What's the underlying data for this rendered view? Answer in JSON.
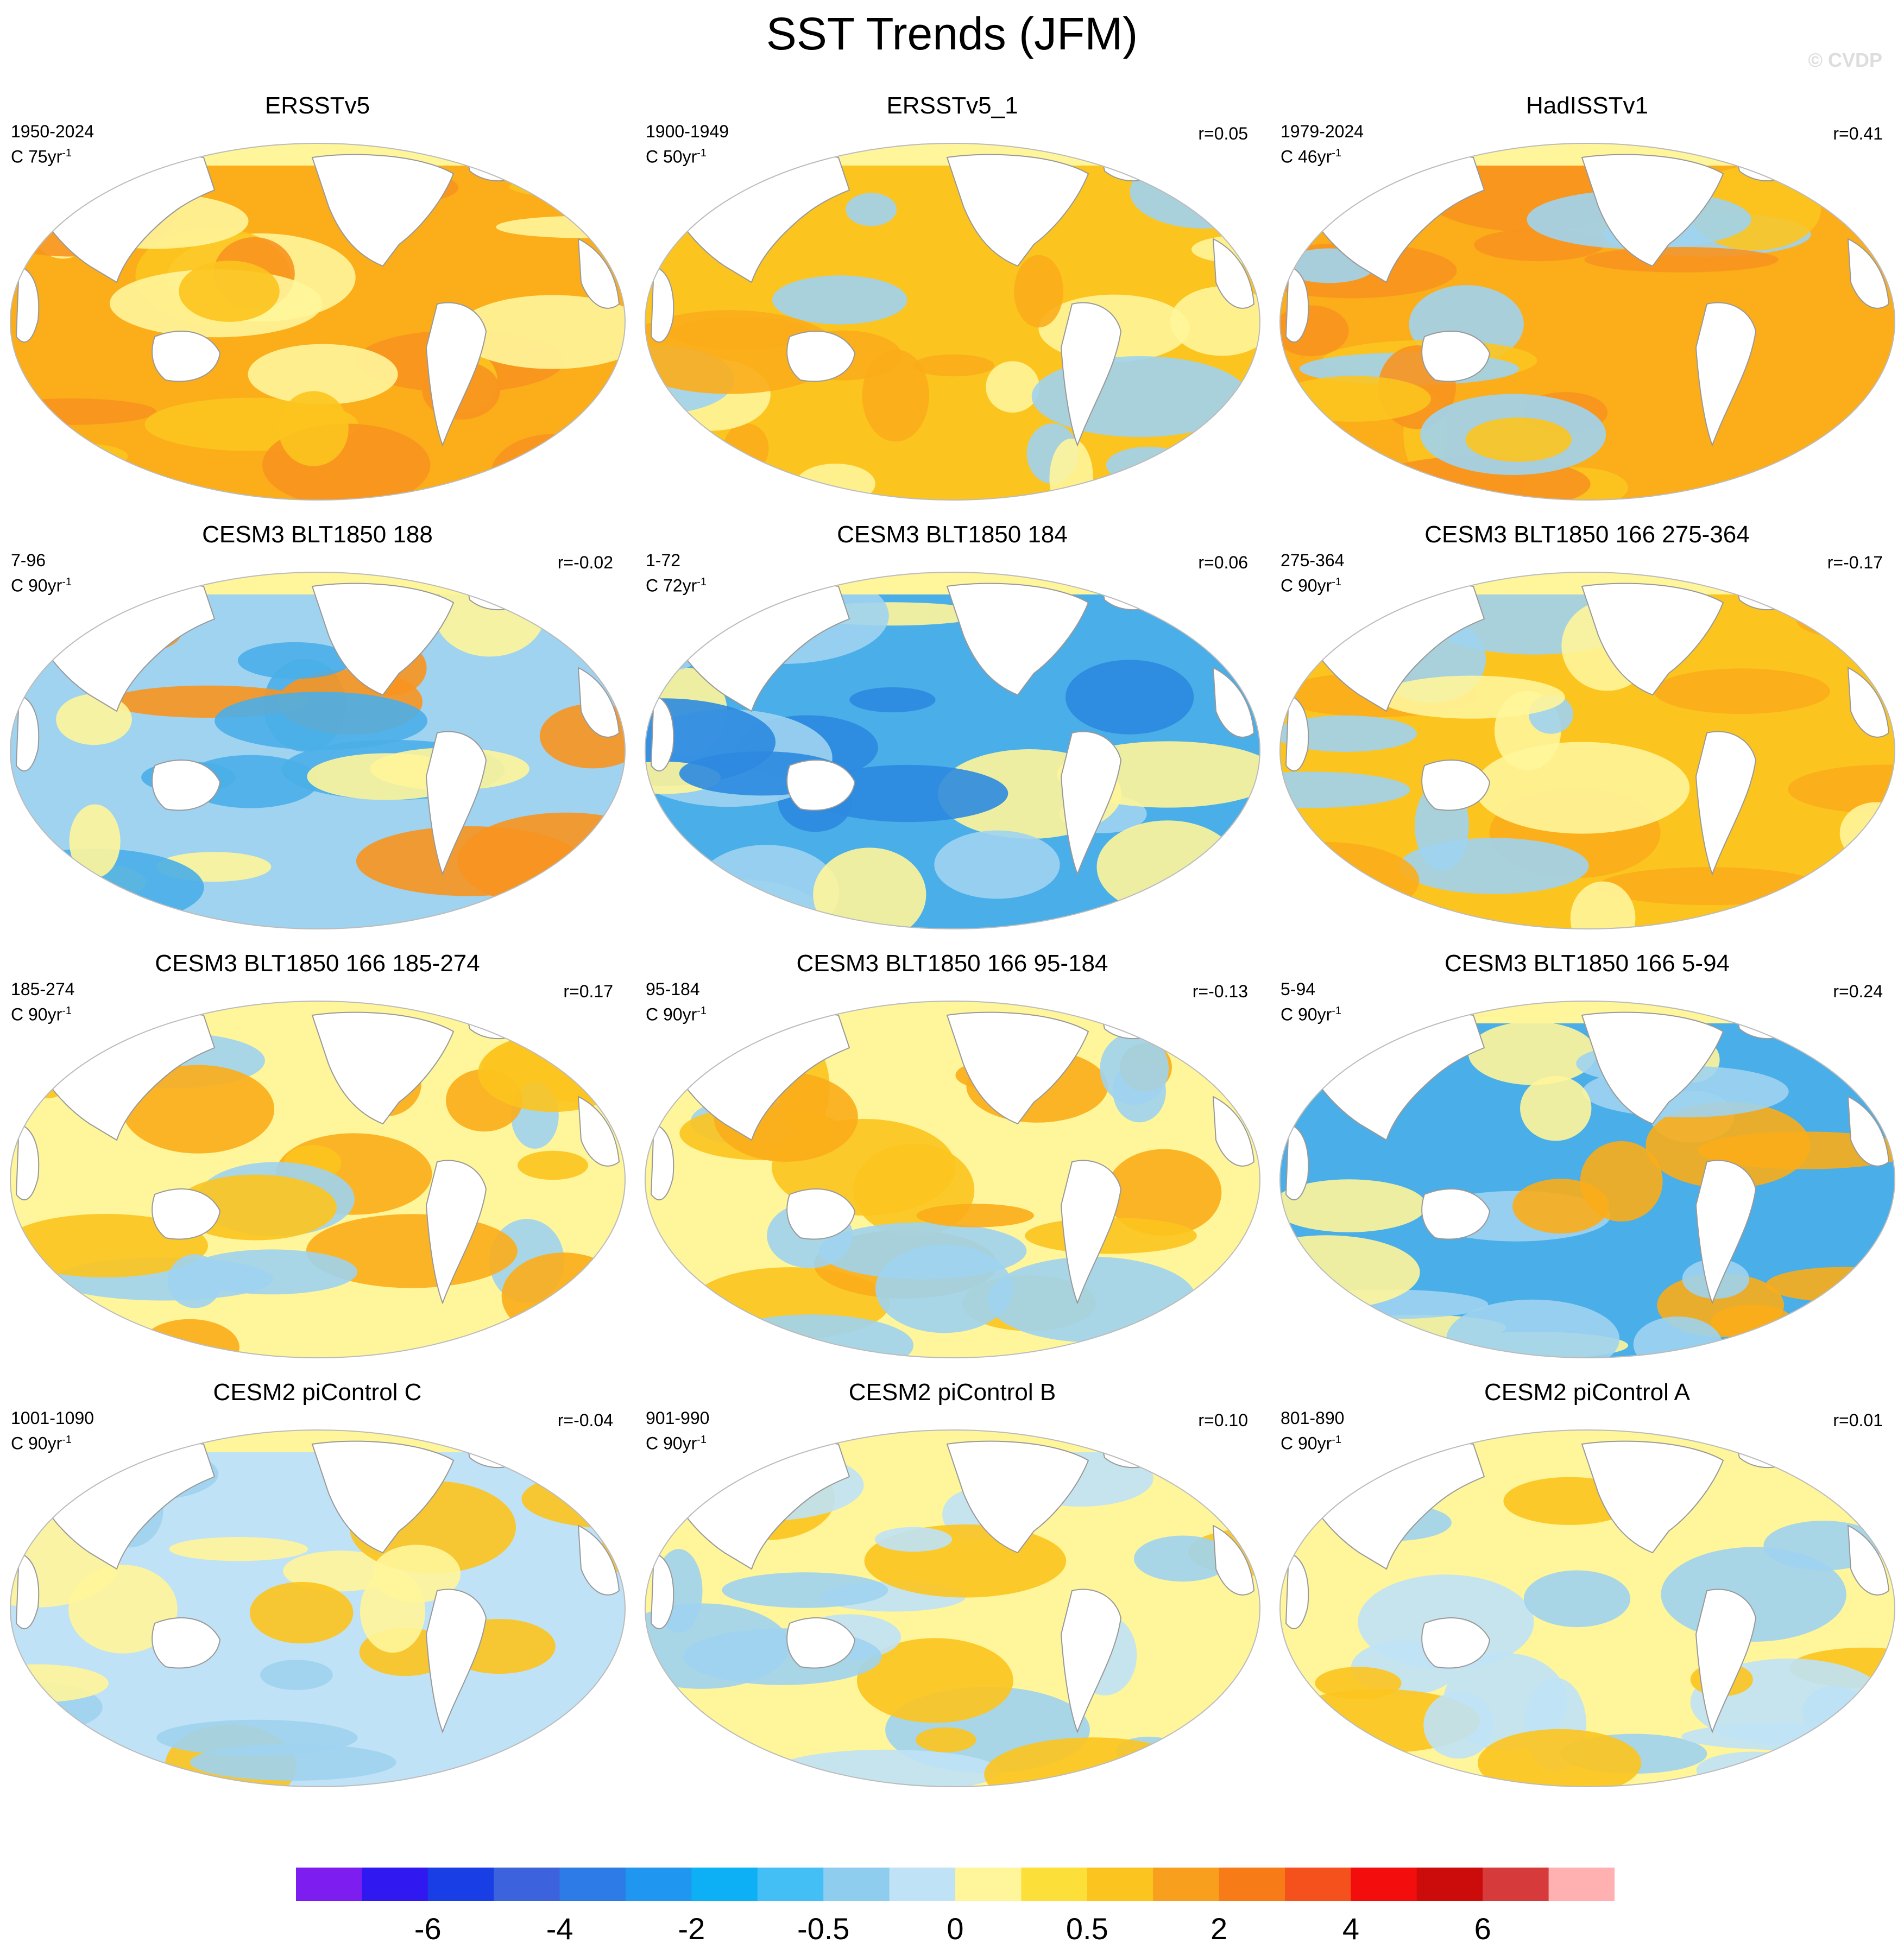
{
  "title": "SST Trends (JFM)",
  "watermark": "© CVDP",
  "panels": [
    {
      "title": "ERSSTv5",
      "period": "1950-2024",
      "trend_prefix": "C 75yr",
      "trend_sup": "-1",
      "corr": "",
      "palette": [
        "#fbad1a",
        "#f8931f",
        "#fcc41e",
        "#fff59a"
      ]
    },
    {
      "title": "ERSSTv5_1",
      "period": "1900-1949",
      "trend_prefix": "C 50yr",
      "trend_sup": "-1",
      "corr": "r=0.05",
      "palette": [
        "#fcc41e",
        "#fff59a",
        "#9fd3f0",
        "#fbad1a"
      ]
    },
    {
      "title": "HadISSTv1",
      "period": "1979-2024",
      "trend_prefix": "C 46yr",
      "trend_sup": "-1",
      "corr": "r=0.41",
      "palette": [
        "#fbad1a",
        "#f8931f",
        "#9fd3f0",
        "#fcc41e"
      ]
    },
    {
      "title": "CESM3 BLT1850 188",
      "period": "7-96",
      "trend_prefix": "C 90yr",
      "trend_sup": "-1",
      "corr": "r=-0.02",
      "palette": [
        "#9fd3f0",
        "#fff59a",
        "#4aaee8",
        "#f8931f"
      ]
    },
    {
      "title": "CESM3 BLT1850 184",
      "period": "1-72",
      "trend_prefix": "C 72yr",
      "trend_sup": "-1",
      "corr": "r=0.06",
      "palette": [
        "#4aaee8",
        "#9fd3f0",
        "#2c8ae0",
        "#fff59a"
      ]
    },
    {
      "title": "CESM3 BLT1850 166 275-364",
      "period": "275-364",
      "trend_prefix": "C 90yr",
      "trend_sup": "-1",
      "corr": "r=-0.17",
      "palette": [
        "#fcc41e",
        "#fff59a",
        "#9fd3f0",
        "#fbad1a"
      ]
    },
    {
      "title": "CESM3 BLT1850 166 185-274",
      "period": "185-274",
      "trend_prefix": "C 90yr",
      "trend_sup": "-1",
      "corr": "r=0.17",
      "palette": [
        "#fff59a",
        "#fcc41e",
        "#9fd3f0",
        "#fbad1a"
      ]
    },
    {
      "title": "CESM3 BLT1850 166 95-184",
      "period": "95-184",
      "trend_prefix": "C 90yr",
      "trend_sup": "-1",
      "corr": "r=-0.13",
      "palette": [
        "#fff59a",
        "#9fd3f0",
        "#fcc41e",
        "#fbad1a"
      ]
    },
    {
      "title": "CESM3 BLT1850 166 5-94",
      "period": "5-94",
      "trend_prefix": "C 90yr",
      "trend_sup": "-1",
      "corr": "r=0.24",
      "palette": [
        "#4aaee8",
        "#9fd3f0",
        "#fff59a",
        "#fbad1a"
      ]
    },
    {
      "title": "CESM2 piControl C",
      "period": "1001-1090",
      "trend_prefix": "C 90yr",
      "trend_sup": "-1",
      "corr": "r=-0.04",
      "palette": [
        "#bfe2f6",
        "#fff59a",
        "#9fd3f0",
        "#fcc41e"
      ]
    },
    {
      "title": "CESM2 piControl B",
      "period": "901-990",
      "trend_prefix": "C 90yr",
      "trend_sup": "-1",
      "corr": "r=0.10",
      "palette": [
        "#fff59a",
        "#bfe2f6",
        "#fcc41e",
        "#9fd3f0"
      ]
    },
    {
      "title": "CESM2 piControl A",
      "period": "801-890",
      "trend_prefix": "C 90yr",
      "trend_sup": "-1",
      "corr": "r=0.01",
      "palette": [
        "#fff59a",
        "#bfe2f6",
        "#9fd3f0",
        "#fcc41e"
      ]
    }
  ],
  "colorbar": {
    "colors": [
      "#7d1df0",
      "#3018f0",
      "#1a3ee6",
      "#3d62dd",
      "#2d7be6",
      "#1f96f0",
      "#0eb0f5",
      "#44bff5",
      "#8fcdee",
      "#bfe2f6",
      "#fff59a",
      "#fddf3a",
      "#fcc41e",
      "#f8a01e",
      "#f77b17",
      "#f4511c",
      "#f40d0d",
      "#cc0b0b",
      "#d63a3a",
      "#ffb0b0"
    ],
    "labels": [
      "-6",
      "-4",
      "-2",
      "-0.5",
      "0",
      "0.5",
      "2",
      "4",
      "6"
    ],
    "label_boundaries": [
      2,
      4,
      6,
      8,
      10,
      12,
      14,
      16,
      18
    ]
  }
}
